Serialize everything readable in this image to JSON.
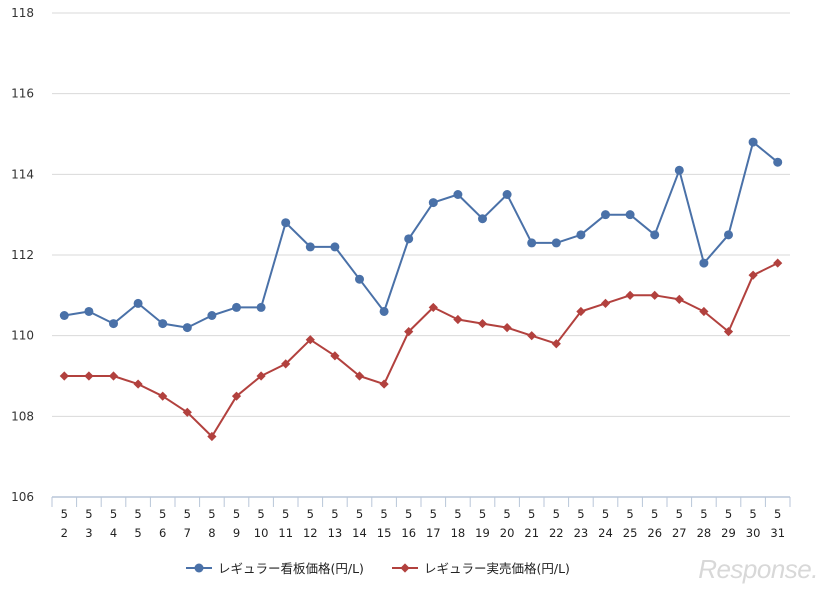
{
  "chart_data": {
    "type": "line",
    "categories": [
      [
        "5",
        "2"
      ],
      [
        "5",
        "3"
      ],
      [
        "5",
        "4"
      ],
      [
        "5",
        "5"
      ],
      [
        "5",
        "6"
      ],
      [
        "5",
        "7"
      ],
      [
        "5",
        "8"
      ],
      [
        "5",
        "9"
      ],
      [
        "5",
        "10"
      ],
      [
        "5",
        "11"
      ],
      [
        "5",
        "12"
      ],
      [
        "5",
        "13"
      ],
      [
        "5",
        "14"
      ],
      [
        "5",
        "15"
      ],
      [
        "5",
        "16"
      ],
      [
        "5",
        "17"
      ],
      [
        "5",
        "18"
      ],
      [
        "5",
        "19"
      ],
      [
        "5",
        "20"
      ],
      [
        "5",
        "21"
      ],
      [
        "5",
        "22"
      ],
      [
        "5",
        "23"
      ],
      [
        "5",
        "24"
      ],
      [
        "5",
        "25"
      ],
      [
        "5",
        "26"
      ],
      [
        "5",
        "27"
      ],
      [
        "5",
        "28"
      ],
      [
        "5",
        "29"
      ],
      [
        "5",
        "30"
      ],
      [
        "5",
        "31"
      ]
    ],
    "yticks": [
      "106",
      "108",
      "110",
      "112",
      "114",
      "116",
      "118"
    ],
    "ylim": [
      106,
      118
    ],
    "grid": true,
    "legend_position": "bottom",
    "series": [
      {
        "name": "レギュラー看板価格(円/L)",
        "color": "#4a71a8",
        "marker": "circle",
        "values": [
          110.5,
          110.6,
          110.3,
          110.8,
          110.3,
          110.2,
          110.5,
          110.7,
          110.7,
          112.8,
          112.2,
          112.2,
          111.4,
          110.6,
          112.4,
          113.3,
          113.5,
          112.9,
          113.5,
          112.3,
          112.3,
          112.5,
          113.0,
          113.0,
          112.5,
          114.1,
          111.8,
          112.5,
          114.8,
          114.3
        ]
      },
      {
        "name": "レギュラー実売価格(円/L)",
        "color": "#b2413e",
        "marker": "diamond",
        "values": [
          109.0,
          109.0,
          109.0,
          108.8,
          108.5,
          108.1,
          107.5,
          108.5,
          109.0,
          109.3,
          109.9,
          109.5,
          109.0,
          108.8,
          110.1,
          110.7,
          110.4,
          110.3,
          110.2,
          110.0,
          109.8,
          110.6,
          110.8,
          111.0,
          111.0,
          110.9,
          110.6,
          110.1,
          111.5,
          111.8
        ]
      }
    ]
  },
  "watermark": "Response."
}
